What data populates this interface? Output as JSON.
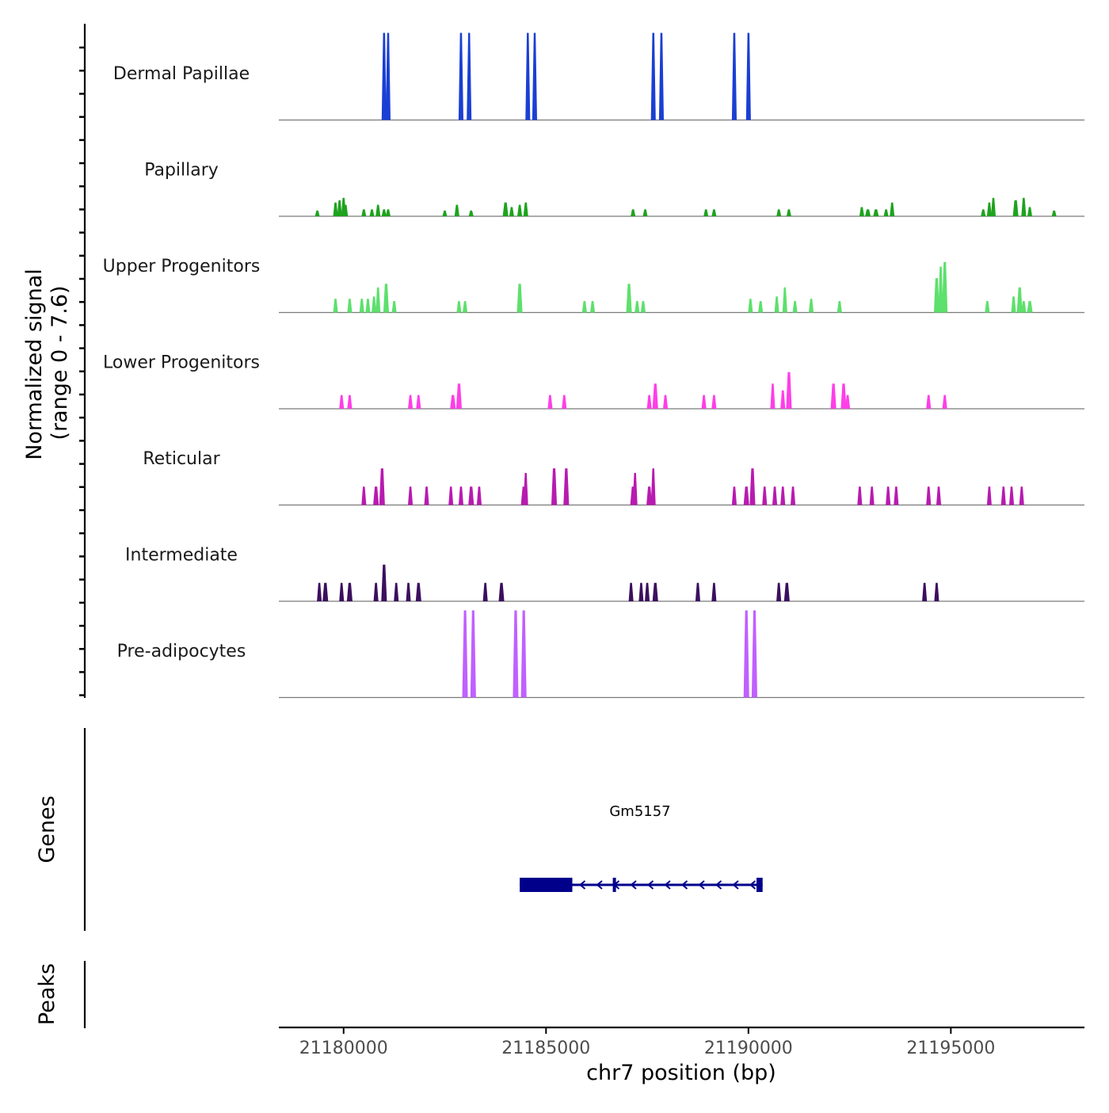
{
  "chart_data": {
    "type": "area",
    "ylabel_signal": "Normalized signal",
    "ylabel_range": "(range 0 - 7.6)",
    "ylabel_genes": "Genes",
    "ylabel_peaks": "Peaks",
    "xlabel": "chr7 position (bp)",
    "xlim": [
      21178400,
      21198300
    ],
    "x_ticks": [
      21180000,
      21185000,
      21190000,
      21195000
    ],
    "x_tick_labels": [
      "21180000",
      "21185000",
      "21190000",
      "21195000"
    ],
    "ylim": [
      0,
      7.6
    ],
    "tracks": [
      {
        "name": "Dermal Papillae",
        "color": "#1a3fd4",
        "peaks": [
          [
            21181000,
            7.6,
            80
          ],
          [
            21181100,
            7.6,
            80
          ],
          [
            21182900,
            7.6,
            80
          ],
          [
            21183100,
            7.6,
            80
          ],
          [
            21184550,
            7.6,
            80
          ],
          [
            21184720,
            7.6,
            80
          ],
          [
            21187650,
            7.6,
            80
          ],
          [
            21187850,
            7.6,
            80
          ],
          [
            21189650,
            7.6,
            80
          ],
          [
            21190000,
            7.6,
            80
          ]
        ]
      },
      {
        "name": "Papillary",
        "color": "#1ea31e",
        "peaks": [
          [
            21179350,
            0.5,
            60
          ],
          [
            21179800,
            1.2,
            80
          ],
          [
            21179900,
            1.4,
            80
          ],
          [
            21180000,
            1.6,
            80
          ],
          [
            21180050,
            1.0,
            60
          ],
          [
            21180500,
            0.6,
            60
          ],
          [
            21180700,
            0.6,
            60
          ],
          [
            21180850,
            1.0,
            80
          ],
          [
            21181000,
            0.6,
            80
          ],
          [
            21181100,
            0.6,
            80
          ],
          [
            21182500,
            0.5,
            60
          ],
          [
            21182800,
            1.0,
            80
          ],
          [
            21183150,
            0.5,
            80
          ],
          [
            21184000,
            1.2,
            100
          ],
          [
            21184150,
            0.8,
            60
          ],
          [
            21184350,
            1.0,
            80
          ],
          [
            21184500,
            1.2,
            80
          ],
          [
            21187150,
            0.6,
            80
          ],
          [
            21187450,
            0.6,
            80
          ],
          [
            21188950,
            0.6,
            60
          ],
          [
            21189150,
            0.6,
            60
          ],
          [
            21190750,
            0.6,
            60
          ],
          [
            21191000,
            0.6,
            60
          ],
          [
            21192800,
            0.8,
            80
          ],
          [
            21192950,
            0.6,
            100
          ],
          [
            21193150,
            0.6,
            100
          ],
          [
            21193400,
            0.6,
            60
          ],
          [
            21193550,
            1.2,
            60
          ],
          [
            21195800,
            0.6,
            80
          ],
          [
            21195950,
            1.2,
            80
          ],
          [
            21196050,
            1.6,
            60
          ],
          [
            21196600,
            1.4,
            100
          ],
          [
            21196800,
            1.6,
            80
          ],
          [
            21196950,
            0.8,
            60
          ],
          [
            21197550,
            0.5,
            40
          ]
        ]
      },
      {
        "name": "Upper Progenitors",
        "color": "#5de06c",
        "peaks": [
          [
            21179800,
            1.2,
            80
          ],
          [
            21180150,
            1.2,
            80
          ],
          [
            21180450,
            1.2,
            80
          ],
          [
            21180600,
            1.2,
            80
          ],
          [
            21180750,
            1.4,
            80
          ],
          [
            21180850,
            2.2,
            80
          ],
          [
            21181050,
            2.5,
            100
          ],
          [
            21181250,
            1.0,
            80
          ],
          [
            21182850,
            1.0,
            80
          ],
          [
            21183000,
            1.0,
            80
          ],
          [
            21184350,
            2.5,
            100
          ],
          [
            21185950,
            1.0,
            80
          ],
          [
            21186150,
            1.0,
            80
          ],
          [
            21187050,
            2.5,
            100
          ],
          [
            21187250,
            1.0,
            80
          ],
          [
            21187400,
            1.0,
            80
          ],
          [
            21190050,
            1.2,
            80
          ],
          [
            21190300,
            1.0,
            80
          ],
          [
            21190700,
            1.4,
            80
          ],
          [
            21190900,
            2.2,
            80
          ],
          [
            21191150,
            1.0,
            80
          ],
          [
            21191550,
            1.2,
            80
          ],
          [
            21192250,
            1.0,
            80
          ],
          [
            21194650,
            3.0,
            100
          ],
          [
            21194750,
            4.0,
            80
          ],
          [
            21194850,
            4.4,
            100
          ],
          [
            21195900,
            1.0,
            80
          ],
          [
            21196550,
            1.4,
            80
          ],
          [
            21196700,
            2.2,
            100
          ],
          [
            21196800,
            1.0,
            80
          ],
          [
            21196950,
            1.0,
            100
          ]
        ]
      },
      {
        "name": "Lower Progenitors",
        "color": "#ff3ee8",
        "peaks": [
          [
            21179950,
            1.2,
            80
          ],
          [
            21180150,
            1.2,
            80
          ],
          [
            21181650,
            1.2,
            80
          ],
          [
            21181850,
            1.2,
            80
          ],
          [
            21182700,
            1.2,
            100
          ],
          [
            21182850,
            2.2,
            100
          ],
          [
            21185100,
            1.2,
            80
          ],
          [
            21185450,
            1.2,
            80
          ],
          [
            21187550,
            1.2,
            80
          ],
          [
            21187700,
            2.2,
            100
          ],
          [
            21187950,
            1.2,
            80
          ],
          [
            21188900,
            1.2,
            80
          ],
          [
            21189150,
            1.2,
            80
          ],
          [
            21190600,
            2.2,
            80
          ],
          [
            21190850,
            1.6,
            80
          ],
          [
            21191000,
            3.2,
            100
          ],
          [
            21192100,
            2.2,
            100
          ],
          [
            21192350,
            2.2,
            100
          ],
          [
            21192450,
            1.2,
            80
          ],
          [
            21194450,
            1.2,
            80
          ],
          [
            21194850,
            1.2,
            80
          ]
        ]
      },
      {
        "name": "Reticular",
        "color": "#b81ab0",
        "peaks": [
          [
            21180500,
            1.6,
            80
          ],
          [
            21180800,
            1.6,
            100
          ],
          [
            21180950,
            3.2,
            100
          ],
          [
            21181650,
            1.6,
            80
          ],
          [
            21182050,
            1.6,
            80
          ],
          [
            21182650,
            1.6,
            80
          ],
          [
            21182900,
            1.6,
            80
          ],
          [
            21183150,
            1.6,
            100
          ],
          [
            21183350,
            1.6,
            80
          ],
          [
            21184450,
            1.6,
            100
          ],
          [
            21184500,
            2.8,
            60
          ],
          [
            21185200,
            3.2,
            100
          ],
          [
            21185500,
            3.2,
            100
          ],
          [
            21187150,
            1.6,
            100
          ],
          [
            21187200,
            2.8,
            60
          ],
          [
            21187550,
            1.6,
            100
          ],
          [
            21187650,
            3.2,
            60
          ],
          [
            21189650,
            1.6,
            80
          ],
          [
            21189950,
            1.6,
            100
          ],
          [
            21190100,
            3.2,
            100
          ],
          [
            21190400,
            1.6,
            80
          ],
          [
            21190650,
            1.6,
            80
          ],
          [
            21190850,
            1.6,
            80
          ],
          [
            21191100,
            1.6,
            80
          ],
          [
            21192750,
            1.6,
            80
          ],
          [
            21193050,
            1.6,
            80
          ],
          [
            21193450,
            1.6,
            80
          ],
          [
            21193650,
            1.6,
            80
          ],
          [
            21194450,
            1.6,
            80
          ],
          [
            21194700,
            1.6,
            80
          ],
          [
            21195950,
            1.6,
            80
          ],
          [
            21196300,
            1.6,
            80
          ],
          [
            21196500,
            1.6,
            80
          ],
          [
            21196750,
            1.6,
            80
          ]
        ]
      },
      {
        "name": "Intermediate",
        "color": "#3b0f5e",
        "peaks": [
          [
            21179400,
            1.6,
            80
          ],
          [
            21179550,
            1.6,
            100
          ],
          [
            21179950,
            1.6,
            80
          ],
          [
            21180150,
            1.6,
            100
          ],
          [
            21180800,
            1.6,
            80
          ],
          [
            21181000,
            3.2,
            100
          ],
          [
            21181300,
            1.6,
            80
          ],
          [
            21181600,
            1.6,
            80
          ],
          [
            21181850,
            1.6,
            100
          ],
          [
            21183500,
            1.6,
            80
          ],
          [
            21183900,
            1.6,
            100
          ],
          [
            21187100,
            1.6,
            80
          ],
          [
            21187350,
            1.6,
            80
          ],
          [
            21187500,
            1.6,
            80
          ],
          [
            21187700,
            1.6,
            100
          ],
          [
            21188750,
            1.6,
            80
          ],
          [
            21189150,
            1.6,
            80
          ],
          [
            21190750,
            1.6,
            80
          ],
          [
            21190950,
            1.6,
            100
          ],
          [
            21194350,
            1.6,
            80
          ],
          [
            21194650,
            1.6,
            80
          ]
        ]
      },
      {
        "name": "Pre-adipocytes",
        "color": "#c060ff",
        "peaks": [
          [
            21183000,
            7.6,
            100
          ],
          [
            21183200,
            7.6,
            100
          ],
          [
            21184250,
            7.6,
            100
          ],
          [
            21184450,
            7.6,
            100
          ],
          [
            21189950,
            7.6,
            100
          ],
          [
            21190150,
            7.6,
            100
          ]
        ]
      }
    ],
    "gene": {
      "name": "Gm5157",
      "color": "#00008b",
      "start": 21184350,
      "end": 21190350,
      "strand": "-",
      "exons": [
        [
          21184350,
          21185650
        ],
        [
          21186650,
          21186700
        ],
        [
          21190200,
          21190350
        ]
      ]
    }
  }
}
